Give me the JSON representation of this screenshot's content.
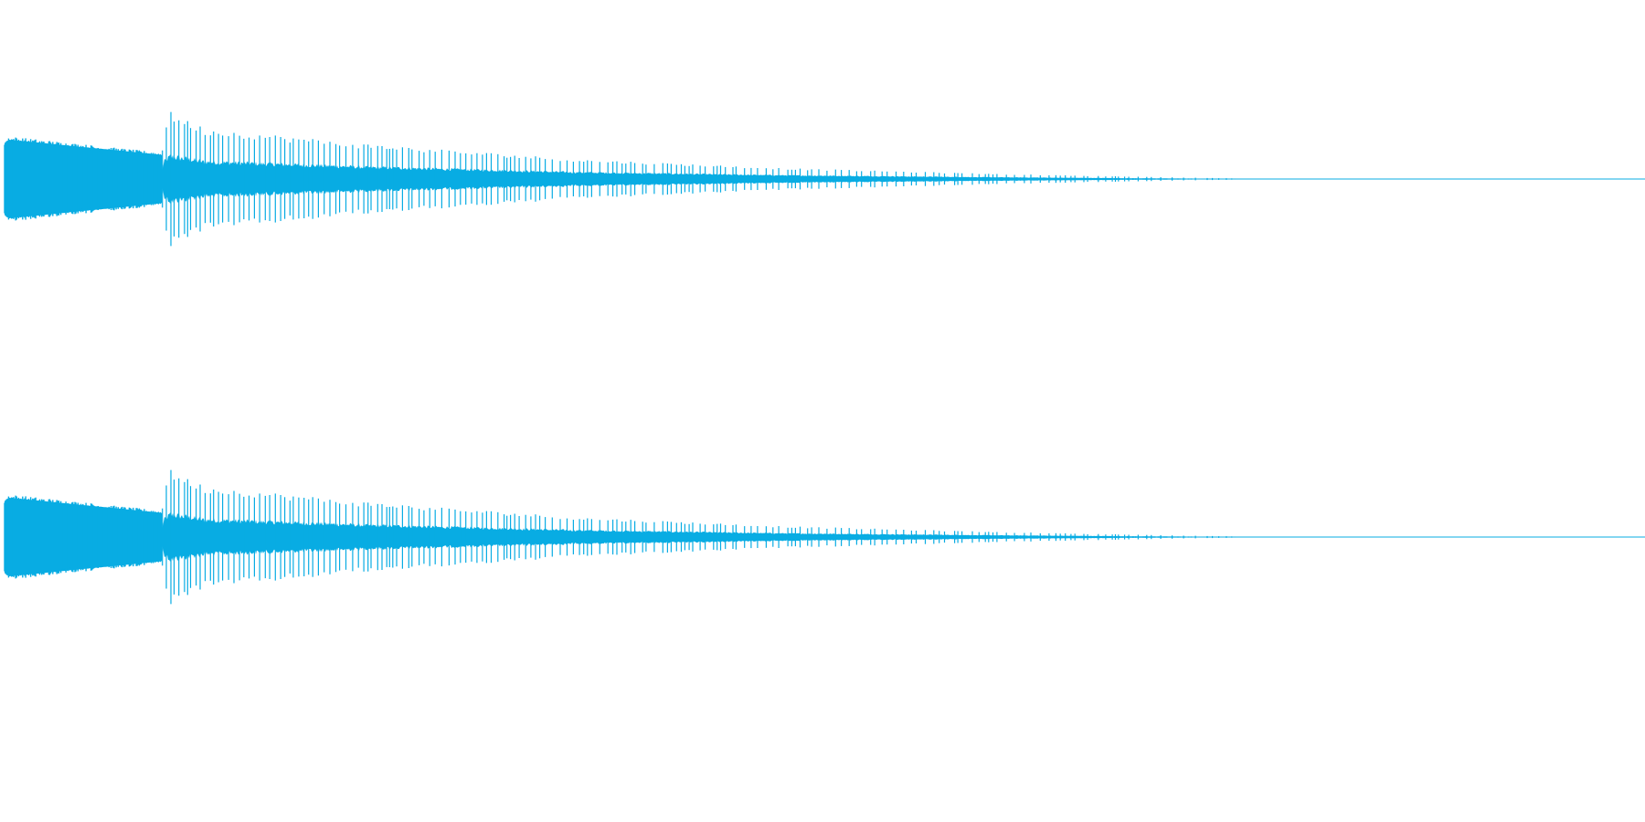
{
  "waveform": {
    "color": "#08ACE3",
    "background": "#ffffff",
    "channels": [
      {
        "name": "",
        "envelope_description_points": [
          [
            0.0,
            0.55
          ],
          [
            0.003,
            0.6
          ],
          [
            0.11,
            0.37
          ],
          [
            0.112,
            0.75
          ],
          [
            0.116,
            0.95
          ],
          [
            0.14,
            0.72
          ],
          [
            0.25,
            0.5
          ],
          [
            0.4,
            0.28
          ],
          [
            0.55,
            0.15
          ],
          [
            0.7,
            0.07
          ],
          [
            0.8,
            0.03
          ],
          [
            0.86,
            0.01
          ],
          [
            0.862,
            0.0
          ],
          [
            1.0,
            0.0
          ]
        ],
        "transient_position": 0.113
      },
      {
        "name": "",
        "envelope_description_points": [
          [
            0.0,
            0.55
          ],
          [
            0.003,
            0.6
          ],
          [
            0.11,
            0.37
          ],
          [
            0.112,
            0.75
          ],
          [
            0.116,
            0.95
          ],
          [
            0.14,
            0.72
          ],
          [
            0.25,
            0.5
          ],
          [
            0.4,
            0.28
          ],
          [
            0.55,
            0.15
          ],
          [
            0.7,
            0.07
          ],
          [
            0.8,
            0.03
          ],
          [
            0.86,
            0.01
          ],
          [
            0.862,
            0.0
          ],
          [
            1.0,
            0.0
          ]
        ],
        "transient_position": 0.113
      }
    ]
  }
}
